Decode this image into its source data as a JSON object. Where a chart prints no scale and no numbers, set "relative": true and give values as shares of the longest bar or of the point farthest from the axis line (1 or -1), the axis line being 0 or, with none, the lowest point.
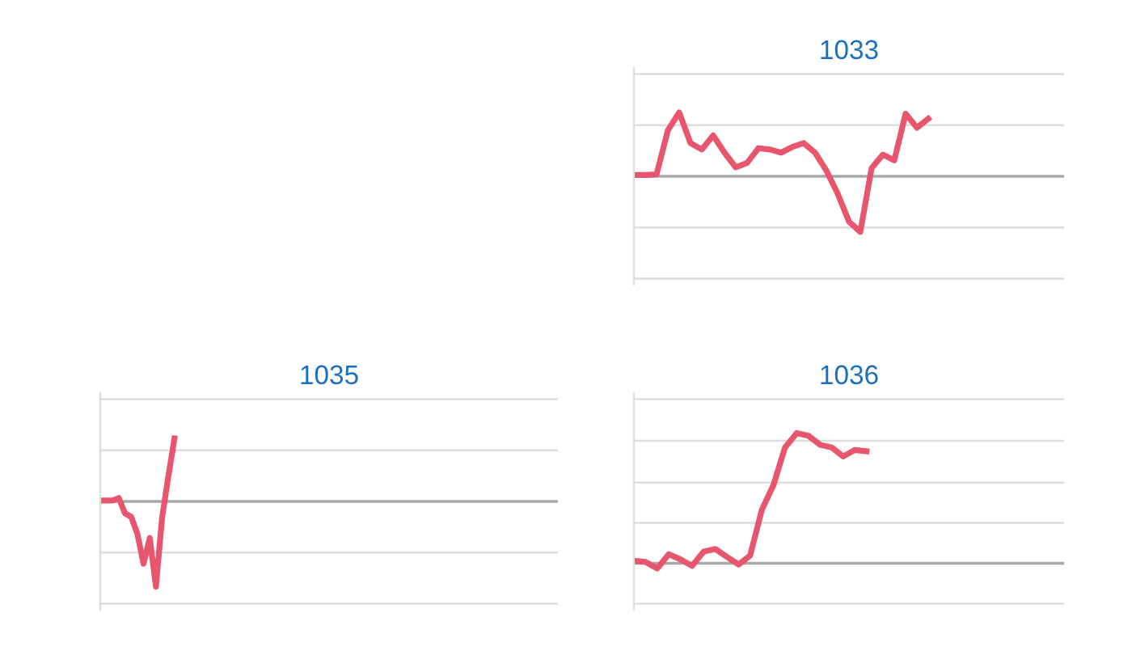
{
  "chart_data": [
    {
      "type": "line",
      "title": "1033",
      "relative": true,
      "ref_lines": [
        {
          "axis": "y",
          "value": 1.6,
          "color": "#dddddd"
        },
        {
          "axis": "y",
          "value": 0.8,
          "color": "#dddddd"
        },
        {
          "axis": "y",
          "value": -0.8,
          "color": "#dddddd"
        },
        {
          "axis": "y",
          "value": -1.6,
          "color": "#dddddd"
        }
      ],
      "categories": [
        null,
        null,
        null,
        null,
        null,
        null,
        null,
        null,
        null,
        null,
        null,
        null,
        null,
        null,
        null,
        null,
        null,
        null,
        null,
        null,
        null,
        null,
        null,
        null,
        null,
        null,
        null,
        null,
        null,
        null,
        null,
        null,
        null,
        null,
        null,
        null,
        null,
        null,
        null
      ],
      "series": [
        {
          "color": "#e8566e",
          "values": [
            0.02,
            0.02,
            0.03,
            0.72,
            1,
            0.52,
            0.42,
            0.64,
            0.37,
            0.14,
            0.21,
            0.44,
            0.42,
            0.37,
            0.46,
            0.52,
            0.37,
            0.09,
            -0.27,
            -0.71,
            -0.87,
            0.13,
            0.34,
            0.25,
            0.98,
            0.76,
            0.9,
            null,
            null,
            null,
            null,
            null,
            null,
            null,
            null,
            null,
            null,
            null,
            null
          ]
        }
      ]
    },
    {
      "type": "line",
      "title": "1035",
      "relative": true,
      "ref_lines": [
        {
          "axis": "y",
          "value": 1.2,
          "color": "#dddddd"
        },
        {
          "axis": "y",
          "value": 0.6,
          "color": "#dddddd"
        },
        {
          "axis": "y",
          "value": -0.6,
          "color": "#dddddd"
        },
        {
          "axis": "y",
          "value": -1.2,
          "color": "#dddddd"
        }
      ],
      "categories": [
        null,
        null,
        null,
        null,
        null,
        null,
        null,
        null,
        null,
        null,
        null,
        null,
        null,
        null,
        null,
        null,
        null,
        null,
        null,
        null,
        null,
        null,
        null,
        null,
        null,
        null,
        null,
        null,
        null,
        null,
        null,
        null,
        null,
        null,
        null,
        null,
        null,
        null,
        null,
        null,
        null,
        null,
        null,
        null,
        null,
        null,
        null,
        null,
        null,
        null,
        null,
        null,
        null,
        null,
        null,
        null,
        null,
        null,
        null,
        null,
        null,
        null,
        null,
        null,
        null,
        null,
        null,
        null,
        null,
        null,
        null,
        null,
        null,
        null,
        null
      ],
      "series": [
        {
          "color": "#e8566e",
          "values": [
            0.01,
            0.01,
            0.01,
            0.04,
            -0.14,
            -0.18,
            -0.38,
            -0.73,
            -0.43,
            -1,
            -0.19,
            0.29,
            0.74,
            null,
            null,
            null,
            null,
            null,
            null,
            null,
            null,
            null,
            null,
            null,
            null,
            null,
            null,
            null,
            null,
            null,
            null,
            null,
            null,
            null,
            null,
            null,
            null,
            null,
            null,
            null,
            null,
            null,
            null,
            null,
            null,
            null,
            null,
            null,
            null,
            null,
            null,
            null,
            null,
            null,
            null,
            null,
            null,
            null,
            null,
            null,
            null,
            null,
            null,
            null,
            null,
            null,
            null,
            null,
            null,
            null,
            null,
            null,
            null,
            null,
            null
          ]
        }
      ]
    },
    {
      "type": "line",
      "title": "1036",
      "relative": true,
      "ref_lines": [
        {
          "axis": "y",
          "value": 1.26,
          "color": "#dddddd"
        },
        {
          "axis": "y",
          "value": 0.94,
          "color": "#dddddd"
        },
        {
          "axis": "y",
          "value": 0.62,
          "color": "#dddddd"
        },
        {
          "axis": "y",
          "value": 0.31,
          "color": "#dddddd"
        },
        {
          "axis": "y",
          "value": -0.31,
          "color": "#dddddd"
        }
      ],
      "categories": [
        null,
        null,
        null,
        null,
        null,
        null,
        null,
        null,
        null,
        null,
        null,
        null,
        null,
        null,
        null,
        null,
        null,
        null,
        null,
        null,
        null,
        null,
        null,
        null,
        null,
        null,
        null,
        null,
        null,
        null,
        null,
        null,
        null,
        null,
        null,
        null,
        null,
        null
      ],
      "series": [
        {
          "color": "#e8566e",
          "values": [
            0.02,
            0.01,
            -0.04,
            0.07,
            0.03,
            -0.02,
            0.09,
            0.11,
            0.05,
            -0.01,
            0.06,
            0.41,
            0.6,
            0.89,
            1,
            0.98,
            0.91,
            0.89,
            0.82,
            0.87,
            0.86,
            null,
            null,
            null,
            null,
            null,
            null,
            null,
            null,
            null,
            null,
            null,
            null,
            null,
            null,
            null,
            null,
            null
          ]
        }
      ]
    }
  ]
}
